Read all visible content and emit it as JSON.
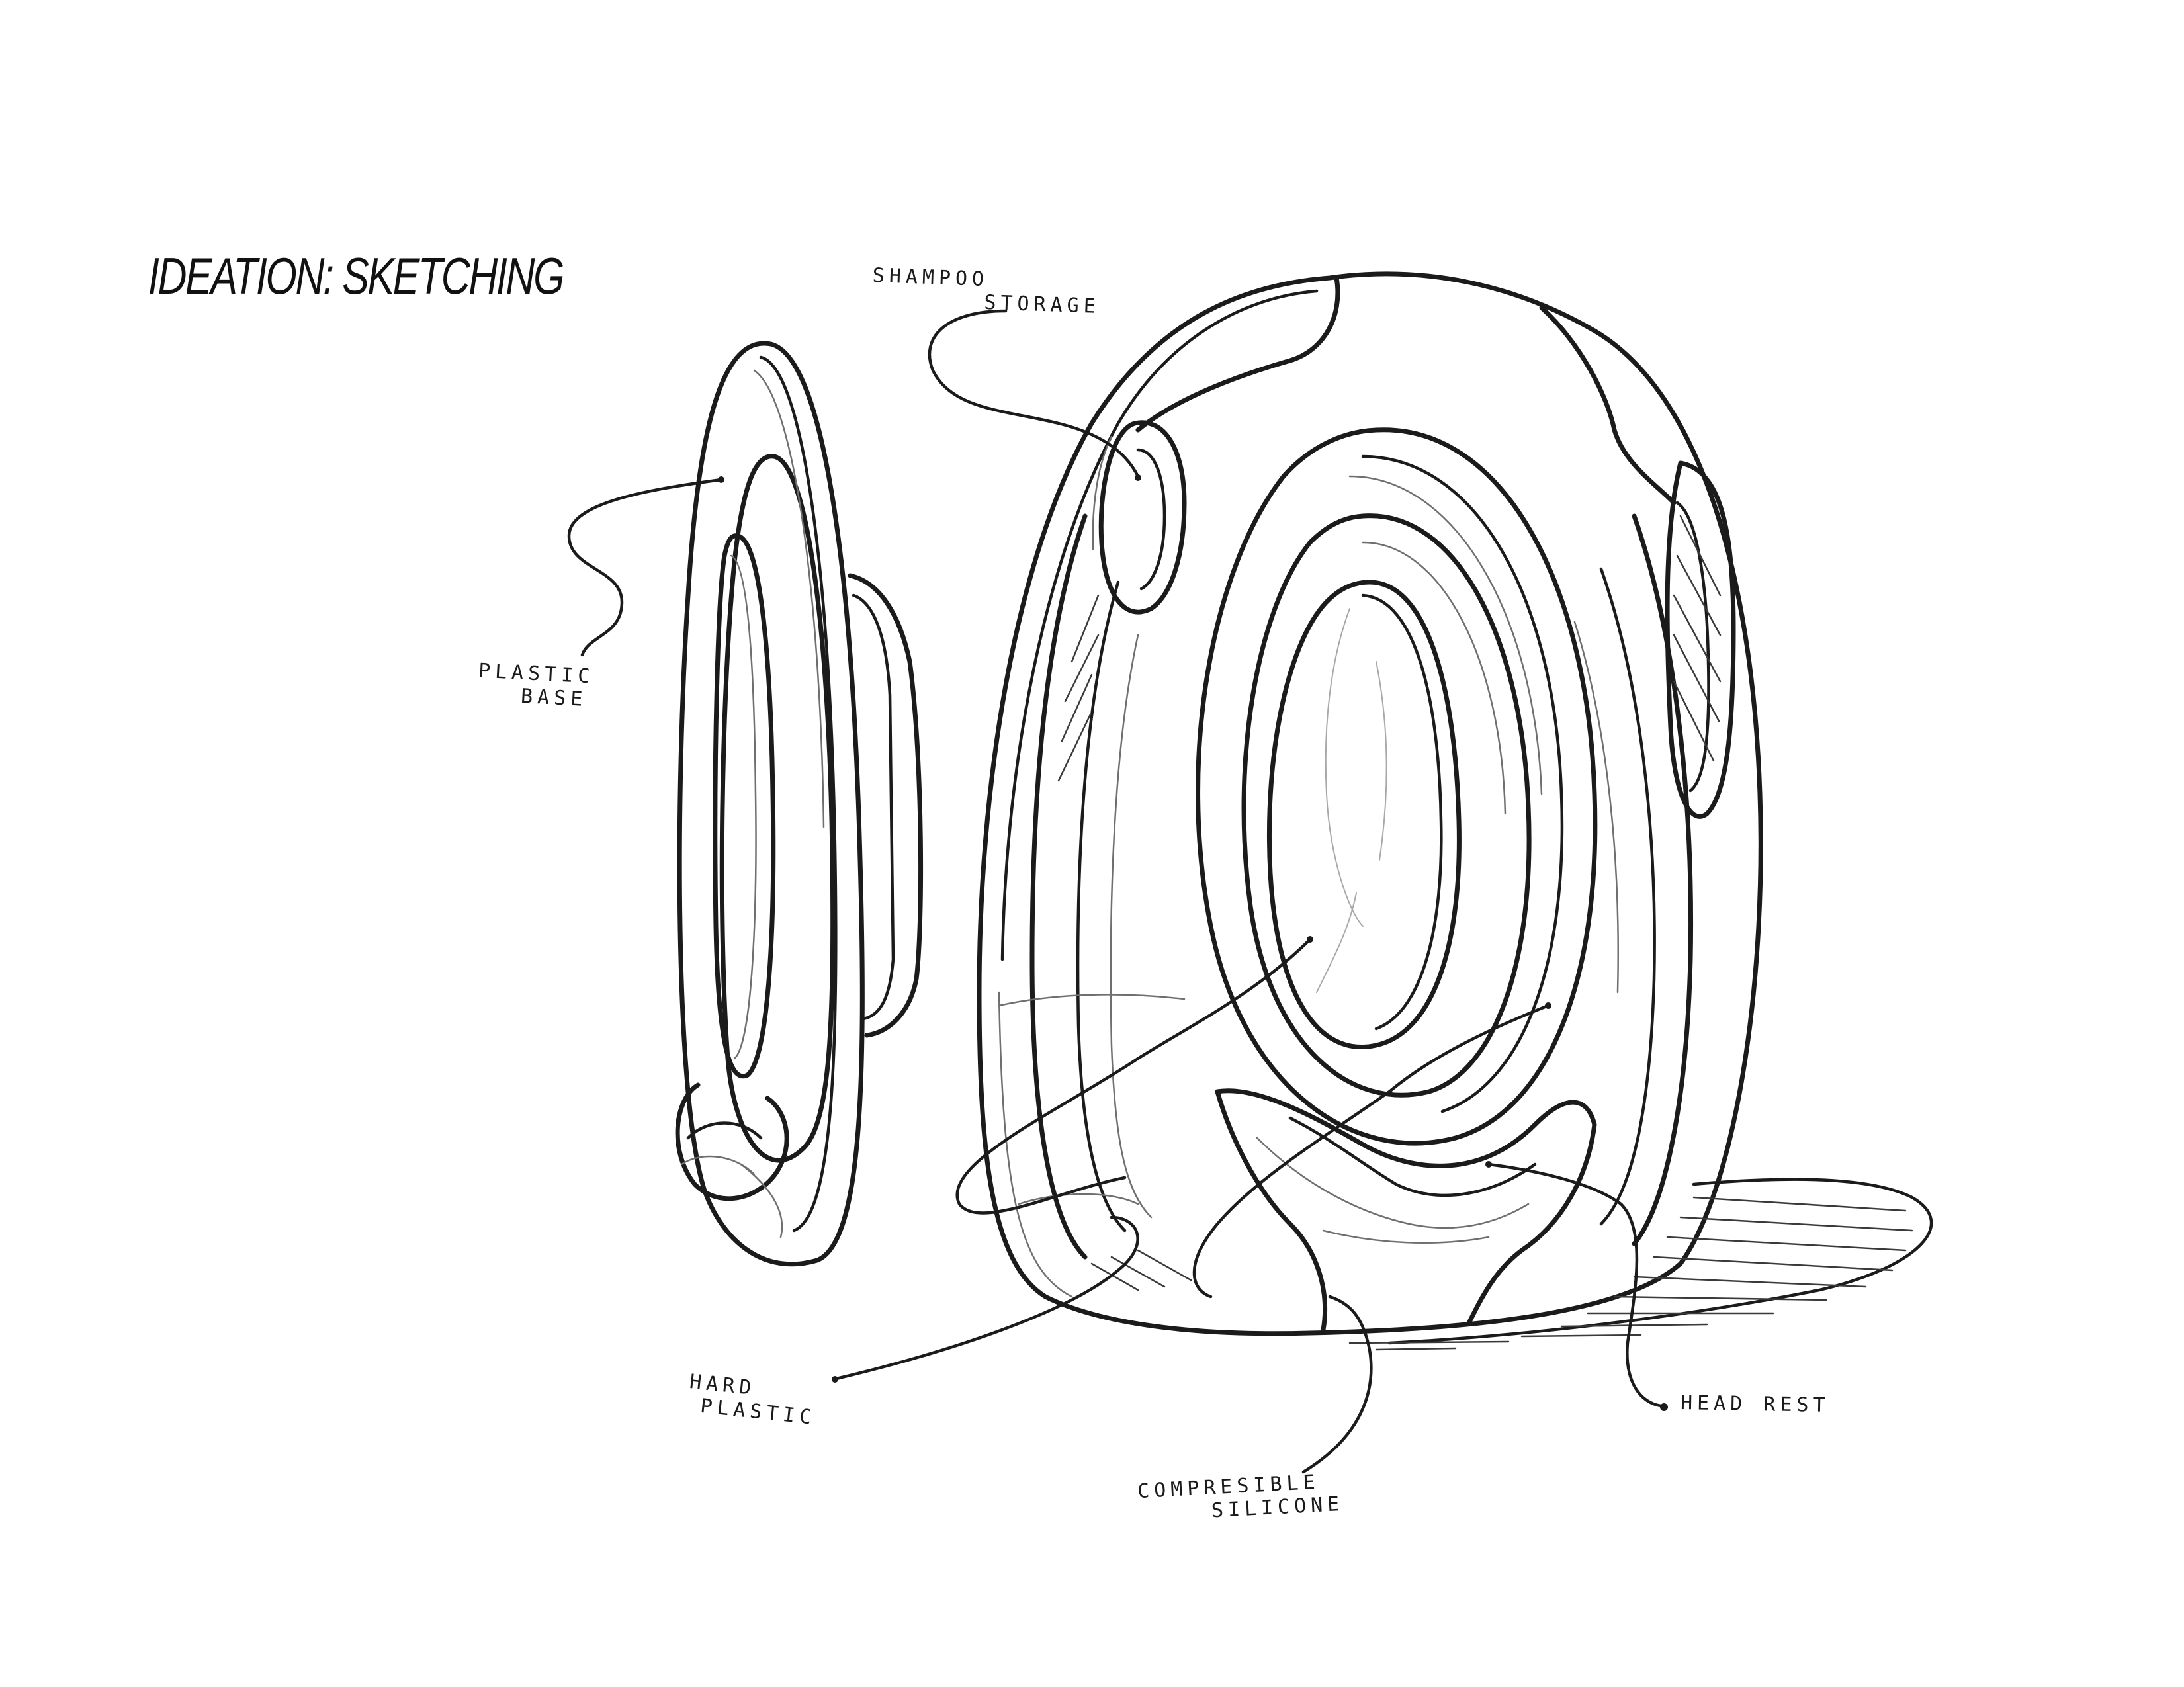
{
  "title": "IDEATION: SKETCHING",
  "labels": {
    "shampoo_storage": [
      "SHAMPOO",
      "STORAGE"
    ],
    "plastic_base": [
      "PLASTIC",
      "BASE"
    ],
    "hard_plastic": [
      "HARD",
      "PLASTIC"
    ],
    "compresible_silicone": [
      "COMPRESIBLE",
      "SILICONE"
    ],
    "head_rest": "HEAD REST"
  },
  "colors": {
    "ink": "#1b1b1b",
    "paper": "#ffffff"
  }
}
